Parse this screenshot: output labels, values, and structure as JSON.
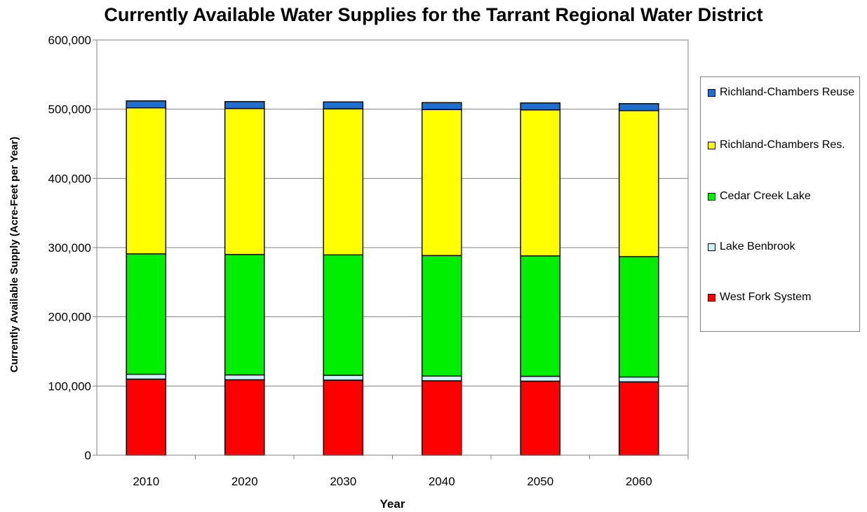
{
  "chart_data": {
    "type": "bar",
    "stacked": true,
    "title": "Currently Available Water Supplies for the Tarrant Regional Water District",
    "xlabel": "Year",
    "ylabel": "Currently Available Supply (Acre-Feet per Year)",
    "ylim": [
      0,
      600000
    ],
    "yticks": [
      "0",
      "100,000",
      "200,000",
      "300,000",
      "400,000",
      "500,000",
      "600,000"
    ],
    "ytick_values": [
      0,
      100000,
      200000,
      300000,
      400000,
      500000,
      600000
    ],
    "categories": [
      "2010",
      "2020",
      "2030",
      "2040",
      "2050",
      "2060"
    ],
    "grid": true,
    "legend_position": "right",
    "series": [
      {
        "name": "West Fork System",
        "color": "#ff0000",
        "values": [
          110000,
          109000,
          108500,
          107500,
          107000,
          106000
        ]
      },
      {
        "name": "Lake Benbrook",
        "color": "#ccf2ff",
        "values": [
          7000,
          7000,
          7000,
          7000,
          7000,
          7000
        ]
      },
      {
        "name": "Cedar Creek Lake",
        "color": "#00ee00",
        "values": [
          174000,
          174000,
          174000,
          174000,
          174000,
          174000
        ]
      },
      {
        "name": "Richland-Chambers Res.",
        "color": "#ffff00",
        "values": [
          211000,
          211000,
          211000,
          211000,
          211000,
          211000
        ]
      },
      {
        "name": "Richland-Chambers Reuse",
        "color": "#1f6fd0",
        "values": [
          10000,
          10000,
          10000,
          10000,
          10000,
          10000
        ]
      }
    ]
  }
}
